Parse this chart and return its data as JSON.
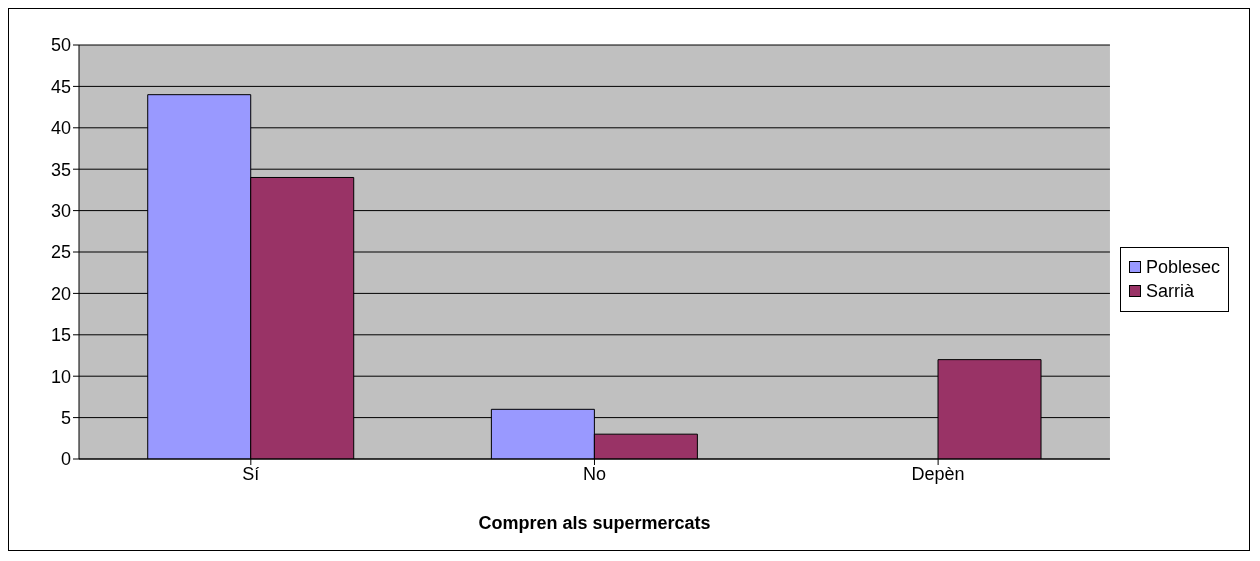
{
  "chart_data": {
    "type": "bar",
    "xlabel": "Compren als supermercats",
    "categories": [
      "Sí",
      "No",
      "Depèn"
    ],
    "series": [
      {
        "name": "Poblesec",
        "color": "#9999ff",
        "values": [
          44,
          6,
          0
        ]
      },
      {
        "name": "Sarrià",
        "color": "#993366",
        "values": [
          34,
          3,
          12
        ]
      }
    ],
    "ylim": [
      0,
      50
    ],
    "yticks": [
      0,
      5,
      10,
      15,
      20,
      25,
      30,
      35,
      40,
      45,
      50
    ],
    "grid": "y",
    "legend": "right"
  }
}
